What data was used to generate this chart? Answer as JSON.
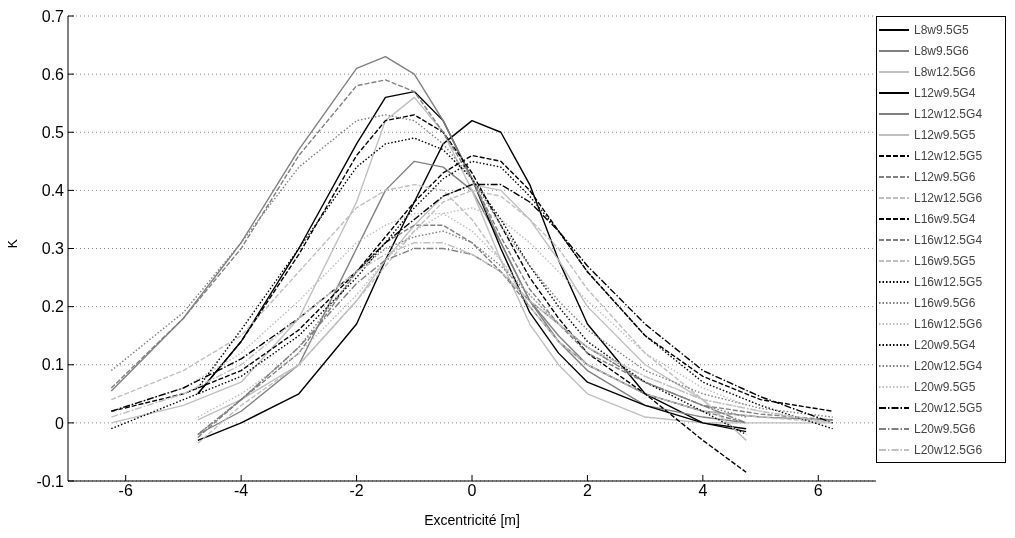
{
  "chart_data": {
    "type": "line",
    "xlabel": "Excentricité [m]",
    "ylabel": "K",
    "xlim": [
      -7,
      7
    ],
    "xticks": [
      -6,
      -4,
      -2,
      0,
      2,
      4,
      6
    ],
    "ylim": [
      -0.1,
      0.7
    ],
    "yticks": [
      -0.1,
      0,
      0.1,
      0.2,
      0.3,
      0.4,
      0.5,
      0.6,
      0.7
    ],
    "grid": "y",
    "legend": "right",
    "marker": "none",
    "series": [
      {
        "name": "L8w9.5G5",
        "color": "#000000",
        "line_style": "solid",
        "x": [
          -4.75,
          -4,
          -3,
          -2,
          -1.5,
          -1,
          -0.5,
          0,
          0.5,
          1,
          1.5,
          2,
          3,
          4,
          4.75
        ],
        "values": [
          -0.03,
          0.0,
          0.05,
          0.17,
          0.28,
          0.38,
          0.48,
          0.52,
          0.5,
          0.41,
          0.28,
          0.17,
          0.05,
          0.0,
          -0.01
        ]
      },
      {
        "name": "L8w9.5G6",
        "color": "#808080",
        "line_style": "solid",
        "x": [
          -4.75,
          -4,
          -3,
          -2,
          -1.5,
          -1,
          -0.5,
          0,
          0.5,
          1,
          1.5,
          2,
          3,
          4,
          4.75
        ],
        "values": [
          -0.02,
          0.02,
          0.1,
          0.3,
          0.4,
          0.45,
          0.44,
          0.4,
          0.31,
          0.21,
          0.14,
          0.09,
          0.03,
          0.01,
          0.0
        ]
      },
      {
        "name": "L8w12.5G6",
        "color": "#c0c0c0",
        "line_style": "solid",
        "x": [
          -6.25,
          -5,
          -4,
          -3,
          -2,
          -1.5,
          -1,
          -0.5,
          0,
          0.5,
          1,
          1.5,
          2,
          3,
          4,
          5,
          6.25
        ],
        "values": [
          0.0,
          0.03,
          0.07,
          0.18,
          0.38,
          0.52,
          0.56,
          0.5,
          0.4,
          0.28,
          0.17,
          0.1,
          0.05,
          0.01,
          0.0,
          0.0,
          0.0
        ]
      },
      {
        "name": "L12w9.5G4",
        "color": "#000000",
        "line_style": "solid",
        "x": [
          -4.75,
          -4,
          -3,
          -2,
          -1.5,
          -1,
          -0.5,
          0,
          0.5,
          1,
          1.5,
          2,
          3,
          4,
          4.75
        ],
        "values": [
          0.05,
          0.14,
          0.3,
          0.48,
          0.56,
          0.57,
          0.52,
          0.42,
          0.3,
          0.19,
          0.12,
          0.07,
          0.03,
          0.0,
          -0.015
        ]
      },
      {
        "name": "L12w12.5G4",
        "color": "#808080",
        "line_style": "solid",
        "x": [
          -6.25,
          -5,
          -4,
          -3,
          -2,
          -1.5,
          -1,
          -0.5,
          0,
          0.5,
          1,
          1.5,
          2,
          3,
          4,
          5,
          6.25
        ],
        "values": [
          0.055,
          0.18,
          0.31,
          0.47,
          0.61,
          0.63,
          0.6,
          0.52,
          0.42,
          0.31,
          0.21,
          0.15,
          0.1,
          0.05,
          0.02,
          0.01,
          0.005
        ]
      },
      {
        "name": "L12w9.5G5",
        "color": "#c0c0c0",
        "line_style": "solid",
        "x": [
          -4.75,
          -4,
          -3,
          -2,
          -1.5,
          -1,
          -0.5,
          0,
          0.5,
          1,
          1.5,
          2,
          3,
          4,
          4.75
        ],
        "values": [
          0.005,
          0.04,
          0.1,
          0.21,
          0.28,
          0.34,
          0.39,
          0.41,
          0.4,
          0.35,
          0.28,
          0.2,
          0.1,
          0.04,
          -0.03
        ]
      },
      {
        "name": "L12w12.5G5",
        "color": "#000000",
        "line_style": "dashed",
        "x": [
          -6.25,
          -5,
          -4,
          -3,
          -2,
          -1.5,
          -1,
          -0.5,
          0,
          0.5,
          1,
          1.5,
          2,
          3,
          4,
          5,
          6.25
        ],
        "values": [
          0.02,
          0.05,
          0.09,
          0.16,
          0.26,
          0.32,
          0.38,
          0.43,
          0.46,
          0.45,
          0.4,
          0.33,
          0.26,
          0.15,
          0.08,
          0.04,
          0.02
        ]
      },
      {
        "name": "L12w9.5G6",
        "color": "#808080",
        "line_style": "dashed",
        "x": [
          -4.75,
          -4,
          -3,
          -2,
          -1.5,
          -1,
          -0.5,
          0,
          0.5,
          1,
          1.5,
          2,
          3,
          4,
          4.75
        ],
        "values": [
          -0.025,
          0.04,
          0.12,
          0.26,
          0.31,
          0.34,
          0.34,
          0.31,
          0.26,
          0.2,
          0.14,
          0.1,
          0.05,
          0.02,
          0.0
        ]
      },
      {
        "name": "L12w12.5G6",
        "color": "#c0c0c0",
        "line_style": "dashed",
        "x": [
          -6.25,
          -5,
          -4,
          -3,
          -2,
          -1.5,
          -1,
          -0.5,
          0,
          0.5,
          1,
          1.5,
          2,
          3,
          4,
          5,
          6.25
        ],
        "values": [
          0.04,
          0.09,
          0.15,
          0.26,
          0.37,
          0.4,
          0.41,
          0.4,
          0.35,
          0.28,
          0.2,
          0.14,
          0.1,
          0.05,
          0.02,
          0.01,
          0.0
        ]
      },
      {
        "name": "L16w9.5G4",
        "color": "#000000",
        "line_style": "dashed",
        "x": [
          -4.75,
          -4,
          -3,
          -2,
          -1.5,
          -1,
          -0.5,
          0,
          0.5,
          1,
          1.5,
          2,
          3,
          4,
          4.75
        ],
        "values": [
          0.05,
          0.14,
          0.29,
          0.46,
          0.52,
          0.53,
          0.5,
          0.43,
          0.34,
          0.25,
          0.18,
          0.12,
          0.05,
          -0.03,
          -0.085
        ]
      },
      {
        "name": "L16w12.5G4",
        "color": "#808080",
        "line_style": "dashed",
        "x": [
          -6.25,
          -5,
          -4,
          -3,
          -2,
          -1.5,
          -1,
          -0.5,
          0,
          0.5,
          1,
          1.5,
          2,
          3,
          4,
          5,
          6.25
        ],
        "values": [
          0.06,
          0.18,
          0.3,
          0.46,
          0.58,
          0.59,
          0.57,
          0.5,
          0.42,
          0.32,
          0.23,
          0.17,
          0.12,
          0.07,
          0.03,
          0.015,
          0.005
        ]
      },
      {
        "name": "L16w9.5G5",
        "color": "#c0c0c0",
        "line_style": "dashed",
        "x": [
          -4.75,
          -4,
          -3,
          -2,
          -1.5,
          -1,
          -0.5,
          0,
          0.5,
          1,
          1.5,
          2,
          3,
          4,
          4.75
        ],
        "values": [
          -0.035,
          0.03,
          0.1,
          0.21,
          0.27,
          0.33,
          0.38,
          0.4,
          0.39,
          0.35,
          0.3,
          0.23,
          0.12,
          0.04,
          -0.03
        ]
      },
      {
        "name": "L16w12.5G5",
        "color": "#000000",
        "line_style": "dotted",
        "x": [
          -6.25,
          -5,
          -4,
          -3,
          -2,
          -1.5,
          -1,
          -0.5,
          0,
          0.5,
          1,
          1.5,
          2,
          3,
          4,
          5,
          6.25
        ],
        "values": [
          -0.01,
          0.04,
          0.08,
          0.15,
          0.25,
          0.31,
          0.37,
          0.42,
          0.45,
          0.44,
          0.39,
          0.33,
          0.26,
          0.15,
          0.07,
          0.03,
          -0.01
        ]
      },
      {
        "name": "L16w9.5G6",
        "color": "#808080",
        "line_style": "dotted",
        "x": [
          -4.75,
          -4,
          -3,
          -2,
          -1.5,
          -1,
          -0.5,
          0,
          0.5,
          1,
          1.5,
          2,
          3,
          4,
          4.75
        ],
        "values": [
          -0.02,
          0.04,
          0.13,
          0.26,
          0.3,
          0.32,
          0.33,
          0.31,
          0.27,
          0.22,
          0.17,
          0.13,
          0.07,
          0.03,
          0.01
        ]
      },
      {
        "name": "L16w12.5G6",
        "color": "#c0c0c0",
        "line_style": "dotted",
        "x": [
          -6.25,
          -5,
          -4,
          -3,
          -2,
          -1.5,
          -1,
          -0.5,
          0,
          0.5,
          1,
          1.5,
          2,
          3,
          4,
          5,
          6.25
        ],
        "values": [
          0.02,
          0.06,
          0.12,
          0.21,
          0.31,
          0.34,
          0.36,
          0.36,
          0.33,
          0.28,
          0.22,
          0.17,
          0.13,
          0.08,
          0.04,
          0.02,
          0.0
        ]
      },
      {
        "name": "L20w9.5G4",
        "color": "#000000",
        "line_style": "dotted",
        "x": [
          -4.75,
          -4,
          -3,
          -2,
          -1.5,
          -1,
          -0.5,
          0,
          0.5,
          1,
          1.5,
          2,
          3,
          4,
          4.75
        ],
        "values": [
          0.06,
          0.16,
          0.3,
          0.44,
          0.48,
          0.49,
          0.47,
          0.42,
          0.35,
          0.27,
          0.2,
          0.14,
          0.07,
          0.02,
          -0.02
        ]
      },
      {
        "name": "L20w12.5G4",
        "color": "#808080",
        "line_style": "dotted",
        "x": [
          -6.25,
          -5,
          -4,
          -3,
          -2,
          -1.5,
          -1,
          -0.5,
          0,
          0.5,
          1,
          1.5,
          2,
          3,
          4,
          5,
          6.25
        ],
        "values": [
          0.09,
          0.19,
          0.31,
          0.44,
          0.52,
          0.53,
          0.52,
          0.48,
          0.42,
          0.34,
          0.27,
          0.21,
          0.16,
          0.09,
          0.05,
          0.025,
          0.01
        ]
      },
      {
        "name": "L20w9.5G5",
        "color": "#c0c0c0",
        "line_style": "dotted",
        "x": [
          -4.75,
          -4,
          -3,
          -2,
          -1.5,
          -1,
          -0.5,
          0,
          0.5,
          1,
          1.5,
          2,
          3,
          4,
          4.75
        ],
        "values": [
          0.01,
          0.05,
          0.12,
          0.22,
          0.28,
          0.33,
          0.36,
          0.37,
          0.35,
          0.31,
          0.26,
          0.21,
          0.12,
          0.06,
          0.03
        ]
      },
      {
        "name": "L20w12.5G5",
        "color": "#000000",
        "line_style": "dashdot",
        "x": [
          -6.25,
          -5,
          -4,
          -3,
          -2,
          -1.5,
          -1,
          -0.5,
          0,
          0.5,
          1,
          1.5,
          2,
          3,
          4,
          5,
          6.25
        ],
        "values": [
          0.02,
          0.06,
          0.11,
          0.18,
          0.26,
          0.31,
          0.35,
          0.39,
          0.41,
          0.41,
          0.38,
          0.33,
          0.27,
          0.17,
          0.09,
          0.045,
          0.0
        ]
      },
      {
        "name": "L20w9.5G6",
        "color": "#808080",
        "line_style": "dashdot",
        "x": [
          -4.75,
          -4,
          -3,
          -2,
          -1.5,
          -1,
          -0.5,
          0,
          0.5,
          1,
          1.5,
          2,
          3,
          4,
          4.75
        ],
        "values": [
          -0.02,
          0.04,
          0.13,
          0.24,
          0.28,
          0.3,
          0.3,
          0.29,
          0.26,
          0.21,
          0.17,
          0.13,
          0.07,
          0.03,
          0.0
        ]
      },
      {
        "name": "L20w12.5G6",
        "color": "#c0c0c0",
        "line_style": "dashdot",
        "x": [
          -6.25,
          -5,
          -4,
          -3,
          -2,
          -1.5,
          -1,
          -0.5,
          0,
          0.5,
          1,
          1.5,
          2,
          3,
          4,
          5,
          6.25
        ],
        "values": [
          0.01,
          0.05,
          0.1,
          0.18,
          0.26,
          0.29,
          0.31,
          0.31,
          0.29,
          0.26,
          0.21,
          0.17,
          0.13,
          0.08,
          0.04,
          0.02,
          0.0
        ]
      }
    ]
  }
}
